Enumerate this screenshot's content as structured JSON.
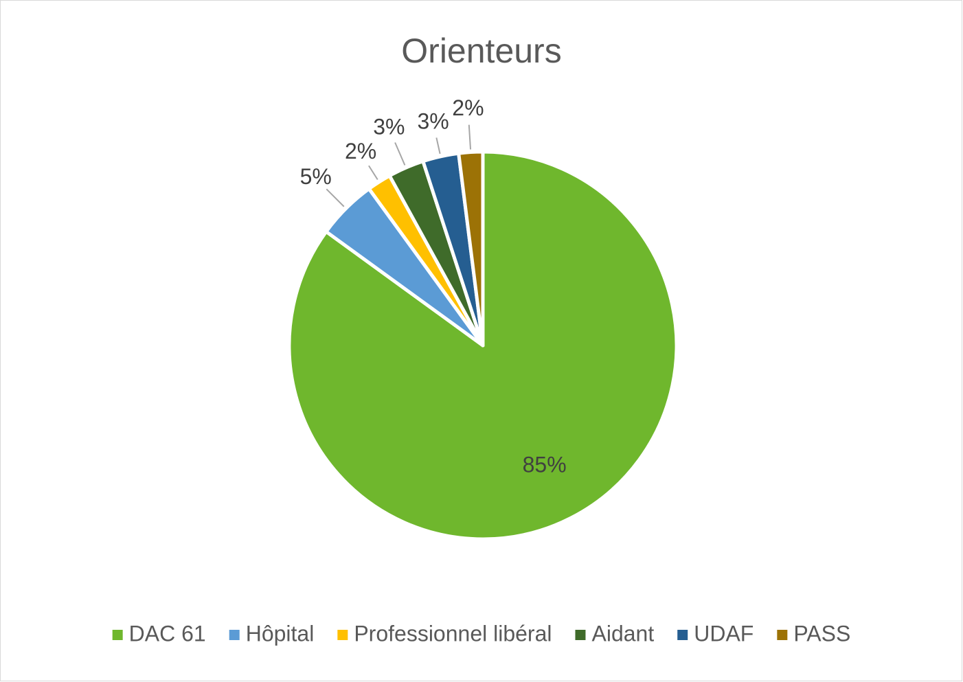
{
  "chart_data": {
    "type": "pie",
    "title": "Orienteurs",
    "categories": [
      "DAC 61",
      "Hôpital",
      "Professionnel libéral",
      "Aidant",
      "UDAF",
      "PASS"
    ],
    "values": [
      85,
      5,
      2,
      3,
      3,
      2
    ],
    "value_labels": [
      "85%",
      "5%",
      "2%",
      "3%",
      "3%",
      "2%"
    ],
    "colors": [
      "#6fb72d",
      "#5b9bd5",
      "#ffc000",
      "#3f6b2a",
      "#255e91",
      "#9c7206"
    ],
    "legend": "bottom"
  }
}
